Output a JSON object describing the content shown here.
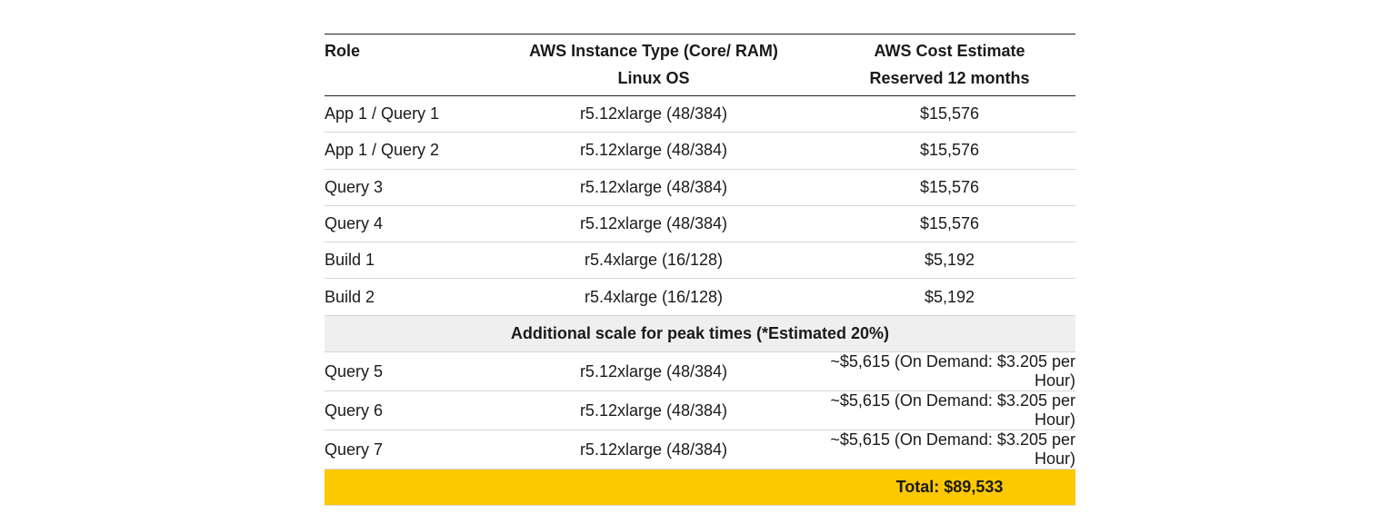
{
  "table": {
    "headers": {
      "role": "Role",
      "instance_line1": "AWS Instance Type (Core/ RAM)",
      "instance_line2": "Linux OS",
      "cost_line1": "AWS Cost Estimate",
      "cost_line2": "Reserved 12 months"
    },
    "rows": [
      {
        "role": "App 1 / Query 1",
        "instance": "r5.12xlarge (48/384)",
        "cost": "$15,576"
      },
      {
        "role": "App 1 / Query 2",
        "instance": "r5.12xlarge (48/384)",
        "cost": "$15,576"
      },
      {
        "role": "Query 3",
        "instance": "r5.12xlarge (48/384)",
        "cost": "$15,576"
      },
      {
        "role": "Query 4",
        "instance": "r5.12xlarge (48/384)",
        "cost": "$15,576"
      },
      {
        "role": "Build 1",
        "instance": "r5.4xlarge (16/128)",
        "cost": "$5,192"
      },
      {
        "role": "Build 2",
        "instance": "r5.4xlarge (16/128)",
        "cost": "$5,192"
      }
    ],
    "section_label": "Additional scale for peak times (*Estimated 20%)",
    "peak_rows": [
      {
        "role": "Query 5",
        "instance": "r5.12xlarge (48/384)",
        "cost": "~$5,615 (On Demand: $3.205 per Hour)"
      },
      {
        "role": "Query 6",
        "instance": "r5.12xlarge (48/384)",
        "cost": "~$5,615 (On Demand: $3.205 per Hour)"
      },
      {
        "role": "Query 7",
        "instance": "r5.12xlarge (48/384)",
        "cost": "~$5,615 (On Demand: $3.205 per Hour)"
      }
    ],
    "total": "Total: $89,533",
    "colors": {
      "total_bg": "#fec800",
      "section_bg": "#efefef"
    }
  }
}
